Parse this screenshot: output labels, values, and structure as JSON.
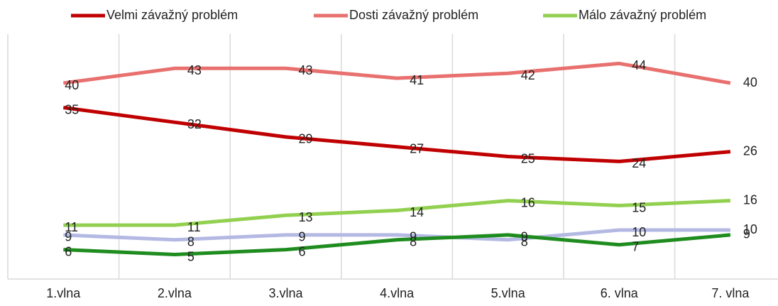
{
  "chart_data": {
    "type": "line",
    "categories": [
      "1.vlna",
      "2.vlna",
      "3.vlna",
      "4.vlna",
      "5.vlna",
      "6. vlna",
      "7. vlna"
    ],
    "series": [
      {
        "name": "Velmi závažný problém",
        "color": "#c00000",
        "values": [
          35,
          32,
          29,
          27,
          25,
          24,
          26
        ]
      },
      {
        "name": "Dosti závažný problém",
        "color": "#e8706e",
        "values": [
          40,
          43,
          43,
          41,
          42,
          44,
          40
        ]
      },
      {
        "name": "Málo závažný problém",
        "color": "#92d050",
        "values": [
          11,
          11,
          13,
          14,
          16,
          15,
          16
        ]
      },
      {
        "color": "#b4b9e3",
        "values": [
          9,
          8,
          9,
          9,
          8,
          10,
          10
        ]
      },
      {
        "color": "#1e8c1e",
        "values": [
          6,
          5,
          6,
          8,
          9,
          7,
          9
        ]
      }
    ],
    "ylim": [
      0,
      50
    ],
    "grid": true
  }
}
